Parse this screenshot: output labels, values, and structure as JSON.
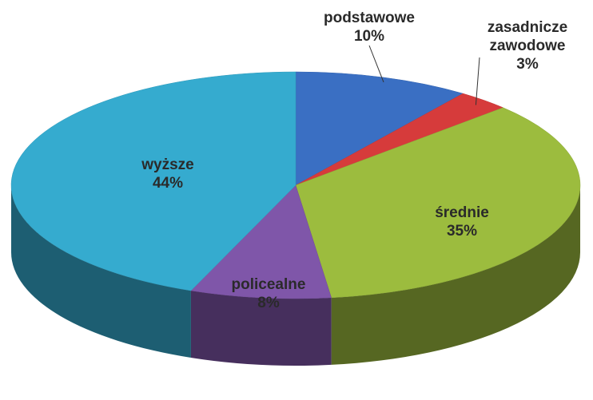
{
  "chart_data": {
    "type": "pie3d",
    "categories": [
      "podstawowe",
      "zasadnicze zawodowe",
      "średnie",
      "policealne",
      "wyższe"
    ],
    "values": [
      10,
      3,
      35,
      8,
      44
    ],
    "value_labels": [
      "10%",
      "3%",
      "35%",
      "8%",
      "44%"
    ],
    "colors": [
      "#3a6fc3",
      "#d63b3b",
      "#9cbc3e",
      "#7f56a9",
      "#35abcf"
    ]
  }
}
